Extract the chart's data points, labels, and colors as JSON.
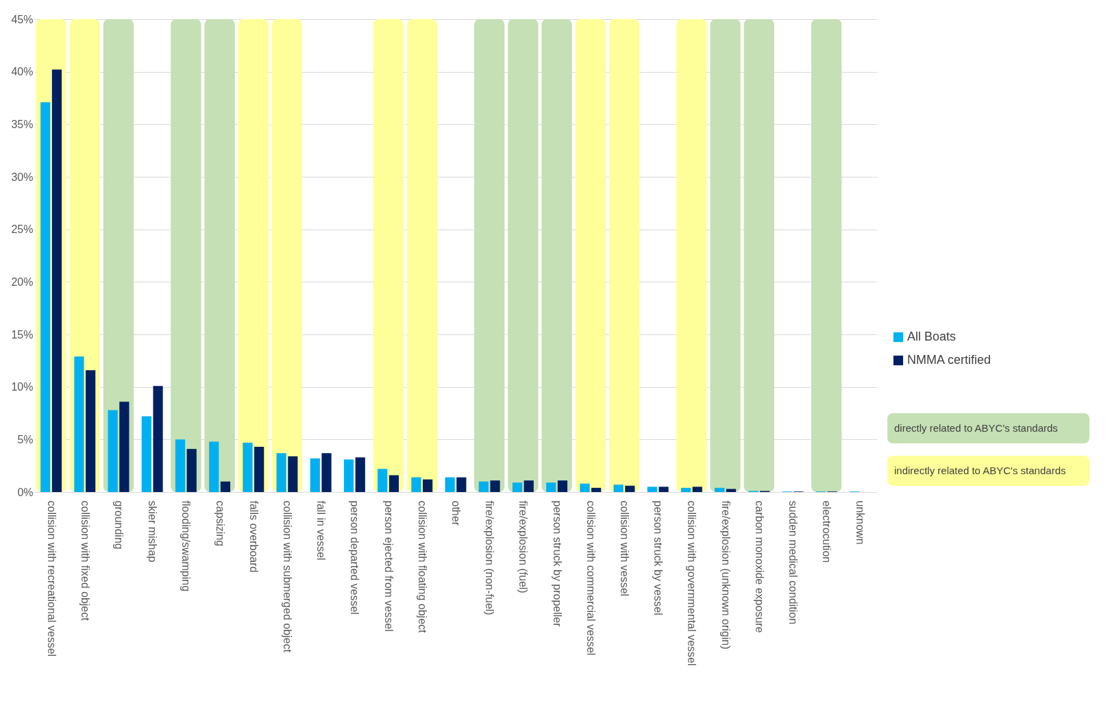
{
  "chart_data": {
    "type": "bar",
    "categories": [
      "collision with recreational vessel",
      "collision with fixed object",
      "grounding",
      "skier mishap",
      "flooding/swamping",
      "capsizing",
      "falls overboard",
      "collision with submerged object",
      "fall in vessel",
      "person departed vessel",
      "person ejected from vessel",
      "collision with floating object",
      "other",
      "fire/explosion (non-fuel)",
      "fire/explosion (fuel)",
      "person struck by propeller",
      "collision with commercial vessel",
      "collision with vessel",
      "person struck by vessel",
      "collision with governmental vessel",
      "fire/explosion (unknown origin)",
      "carbon monoxide exposure",
      "sudden medical condition",
      "electrocution",
      "unknown"
    ],
    "series": [
      {
        "name": "All Boats",
        "color": "#00b0f0",
        "values": [
          37.1,
          12.9,
          7.8,
          7.2,
          5.0,
          4.8,
          4.7,
          3.7,
          3.2,
          3.1,
          2.2,
          1.4,
          1.4,
          1.0,
          0.9,
          0.9,
          0.8,
          0.7,
          0.5,
          0.4,
          0.4,
          0.1,
          0.05,
          0.05,
          0.05
        ]
      },
      {
        "name": "NMMA certified",
        "color": "#002060",
        "values": [
          40.2,
          11.6,
          8.6,
          10.1,
          4.1,
          1.0,
          4.3,
          3.4,
          3.7,
          3.3,
          1.6,
          1.2,
          1.4,
          1.1,
          1.1,
          1.1,
          0.4,
          0.6,
          0.5,
          0.5,
          0.3,
          0.1,
          0.05,
          0.05,
          0
        ]
      }
    ],
    "ylim": [
      0,
      45
    ],
    "yticks": [
      {
        "value": 0,
        "label": "0%"
      },
      {
        "value": 5,
        "label": "5%"
      },
      {
        "value": 10,
        "label": "10%"
      },
      {
        "value": 15,
        "label": "15%"
      },
      {
        "value": 20,
        "label": "20%"
      },
      {
        "value": 25,
        "label": "25%"
      },
      {
        "value": 30,
        "label": "30%"
      },
      {
        "value": 35,
        "label": "35%"
      },
      {
        "value": 40,
        "label": "40%"
      },
      {
        "value": 45,
        "label": "45%"
      }
    ],
    "bands": [
      {
        "axis": "x",
        "from": "grounding",
        "to": "grounding",
        "color": "#c5e0b4"
      },
      {
        "axis": "x",
        "from": "flooding/swamping",
        "to": "flooding/swamping",
        "color": "#c5e0b4"
      },
      {
        "axis": "x",
        "from": "capsizing",
        "to": "capsizing",
        "color": "#c5e0b4"
      },
      {
        "axis": "x",
        "from": "fire/explosion (non-fuel)",
        "to": "fire/explosion (non-fuel)",
        "color": "#c5e0b4"
      },
      {
        "axis": "x",
        "from": "fire/explosion (fuel)",
        "to": "fire/explosion (fuel)",
        "color": "#c5e0b4"
      },
      {
        "axis": "x",
        "from": "person struck by propeller",
        "to": "person struck by propeller",
        "color": "#c5e0b4"
      },
      {
        "axis": "x",
        "from": "fire/explosion (unknown origin)",
        "to": "fire/explosion (unknown origin)",
        "color": "#c5e0b4"
      },
      {
        "axis": "x",
        "from": "carbon monoxide exposure",
        "to": "carbon monoxide exposure",
        "color": "#c5e0b4"
      },
      {
        "axis": "x",
        "from": "electrocution",
        "to": "electrocution",
        "color": "#c5e0b4"
      },
      {
        "axis": "x",
        "from": "collision with recreational vessel",
        "to": "collision with recreational vessel",
        "color": "#ffff99"
      },
      {
        "axis": "x",
        "from": "collision with fixed object",
        "to": "collision with fixed object",
        "color": "#ffff99"
      },
      {
        "axis": "x",
        "from": "falls overboard",
        "to": "falls overboard",
        "color": "#ffff99"
      },
      {
        "axis": "x",
        "from": "collision with submerged object",
        "to": "collision with submerged object",
        "color": "#ffff99"
      },
      {
        "axis": "x",
        "from": "person ejected from vessel",
        "to": "person ejected from vessel",
        "color": "#ffff99"
      },
      {
        "axis": "x",
        "from": "collision with floating object",
        "to": "collision with floating object",
        "color": "#ffff99"
      },
      {
        "axis": "x",
        "from": "collision with commercial vessel",
        "to": "collision with commercial vessel",
        "color": "#ffff99"
      },
      {
        "axis": "x",
        "from": "collision with vessel",
        "to": "collision with vessel",
        "color": "#ffff99"
      },
      {
        "axis": "x",
        "from": "collision with governmental vessel",
        "to": "collision with governmental vessel",
        "color": "#ffff99"
      }
    ],
    "annotations": [
      "directly related to ABYC's standards",
      "indirectly related to ABYC's standards"
    ],
    "grid": "y",
    "legend": "right"
  }
}
